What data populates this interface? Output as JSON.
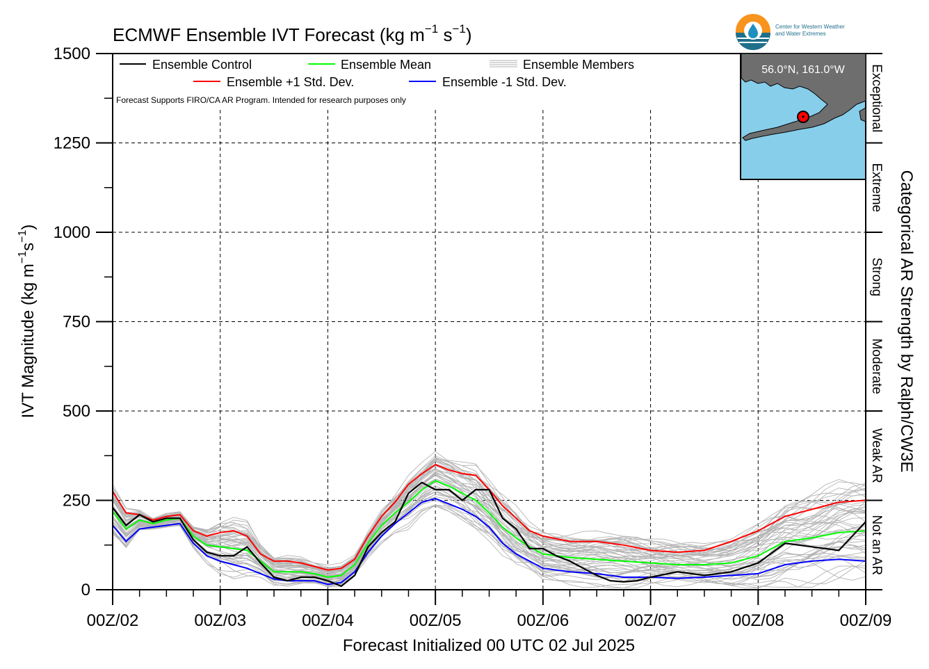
{
  "chart_data": {
    "type": "line",
    "title_main": "ECMWF Ensemble IVT Forecast (kg m",
    "title_sup1": "−1",
    "title_mid": " s",
    "title_sup2": "−1",
    "title_end": ")",
    "ylabel_main": "IVT Magnitude (kg m",
    "ylabel_sup1": "−1",
    "ylabel_mid": "s",
    "ylabel_sup2": "−1",
    "ylabel_end": ")",
    "xlabel": "Forecast Initialized 00 UTC 02 Jul 2025",
    "right_label": "Categorical AR Strength by Ralph/CW3E",
    "note": "Forecast Supports FIRO/CA AR Program. Intended for research purposes only",
    "ylim": [
      0,
      1500
    ],
    "xlim": [
      0,
      168
    ],
    "y_ticks": [
      0,
      250,
      500,
      750,
      1000,
      1250,
      1500
    ],
    "x_ticks": [
      {
        "hour": 0,
        "label": "00Z/02"
      },
      {
        "hour": 24,
        "label": "00Z/03"
      },
      {
        "hour": 48,
        "label": "00Z/04"
      },
      {
        "hour": 72,
        "label": "00Z/05"
      },
      {
        "hour": 96,
        "label": "00Z/06"
      },
      {
        "hour": 120,
        "label": "00Z/07"
      },
      {
        "hour": 144,
        "label": "00Z/08"
      },
      {
        "hour": 168,
        "label": "00Z/09"
      }
    ],
    "grid": true,
    "legend": {
      "position": "top-left",
      "entries": [
        {
          "label": "Ensemble Control",
          "color": "#000000"
        },
        {
          "label": "Ensemble Mean",
          "color": "#00ff00"
        },
        {
          "label": "Ensemble Members",
          "color": "#b0b0b0"
        },
        {
          "label": "Ensemble +1 Std. Dev.",
          "color": "#ff0000"
        },
        {
          "label": "Ensemble -1 Std. Dev.",
          "color": "#0000ff"
        }
      ]
    },
    "categories_ar": [
      {
        "label": "Not an AR",
        "from": 0,
        "to": 250
      },
      {
        "label": "Weak AR",
        "from": 250,
        "to": 500
      },
      {
        "label": "Moderate",
        "from": 500,
        "to": 750
      },
      {
        "label": "Strong",
        "from": 750,
        "to": 1000
      },
      {
        "label": "Extreme",
        "from": 1000,
        "to": 1250
      },
      {
        "label": "Exceptional",
        "from": 1250,
        "to": 1500
      }
    ],
    "inset_map": {
      "label": "56.0°N, 161.0°W",
      "ocean_color": "#87ceeb",
      "land_color": "#6e6e6e",
      "marker_color": "#ff0000"
    },
    "series": [
      {
        "name": "Ensemble Control",
        "color": "#000000",
        "x": [
          0,
          3,
          6,
          9,
          12,
          15,
          18,
          21,
          24,
          27,
          30,
          33,
          36,
          39,
          42,
          45,
          48,
          51,
          54,
          57,
          60,
          63,
          66,
          69,
          72,
          75,
          78,
          81,
          84,
          87,
          90,
          93,
          96,
          99,
          102,
          105,
          108,
          111,
          114,
          117,
          120,
          126,
          132,
          138,
          144,
          150,
          156,
          162,
          168
        ],
        "y": [
          230,
          180,
          210,
          190,
          200,
          200,
          140,
          105,
          95,
          95,
          120,
          75,
          35,
          25,
          35,
          35,
          25,
          10,
          40,
          120,
          160,
          190,
          270,
          300,
          280,
          280,
          250,
          280,
          280,
          200,
          170,
          115,
          115,
          95,
          80,
          60,
          40,
          25,
          22,
          25,
          35,
          50,
          40,
          50,
          75,
          130,
          120,
          110,
          190
        ]
      },
      {
        "name": "Ensemble Mean",
        "color": "#00ff00",
        "x": [
          0,
          3,
          6,
          9,
          12,
          15,
          18,
          21,
          24,
          27,
          30,
          33,
          36,
          39,
          42,
          45,
          48,
          51,
          54,
          57,
          60,
          63,
          66,
          69,
          72,
          75,
          78,
          81,
          84,
          87,
          90,
          93,
          96,
          102,
          108,
          114,
          120,
          126,
          132,
          138,
          144,
          150,
          156,
          162,
          168
        ],
        "y": [
          220,
          170,
          195,
          185,
          195,
          200,
          150,
          125,
          120,
          115,
          110,
          80,
          50,
          50,
          50,
          45,
          35,
          40,
          70,
          130,
          180,
          215,
          245,
          280,
          305,
          290,
          270,
          250,
          215,
          175,
          145,
          120,
          100,
          90,
          85,
          80,
          75,
          70,
          70,
          75,
          95,
          135,
          145,
          160,
          165
        ]
      },
      {
        "name": "Ensemble +1 Std. Dev.",
        "color": "#ff0000",
        "x": [
          0,
          3,
          6,
          9,
          12,
          15,
          18,
          21,
          24,
          27,
          30,
          33,
          36,
          39,
          42,
          45,
          48,
          51,
          54,
          57,
          60,
          63,
          66,
          69,
          72,
          75,
          78,
          81,
          84,
          87,
          90,
          93,
          96,
          102,
          108,
          114,
          120,
          126,
          132,
          138,
          144,
          150,
          156,
          162,
          168
        ],
        "y": [
          275,
          215,
          210,
          195,
          205,
          210,
          165,
          150,
          160,
          165,
          150,
          100,
          80,
          80,
          75,
          65,
          55,
          60,
          85,
          150,
          205,
          245,
          295,
          325,
          350,
          335,
          325,
          320,
          280,
          235,
          200,
          165,
          150,
          135,
          135,
          125,
          110,
          105,
          110,
          135,
          165,
          205,
          225,
          245,
          250
        ]
      },
      {
        "name": "Ensemble -1 Std. Dev.",
        "color": "#0000ff",
        "x": [
          0,
          3,
          6,
          9,
          12,
          15,
          18,
          21,
          24,
          27,
          30,
          33,
          36,
          39,
          42,
          45,
          48,
          51,
          54,
          57,
          60,
          63,
          66,
          69,
          72,
          75,
          78,
          81,
          84,
          87,
          90,
          93,
          96,
          102,
          108,
          114,
          120,
          126,
          132,
          138,
          144,
          150,
          156,
          162,
          168
        ],
        "y": [
          180,
          135,
          170,
          175,
          180,
          185,
          130,
          95,
          80,
          70,
          60,
          45,
          30,
          25,
          25,
          25,
          15,
          20,
          50,
          105,
          150,
          185,
          215,
          245,
          255,
          240,
          225,
          205,
          175,
          130,
          100,
          80,
          60,
          50,
          45,
          35,
          35,
          32,
          35,
          40,
          45,
          70,
          80,
          85,
          80
        ]
      }
    ]
  }
}
